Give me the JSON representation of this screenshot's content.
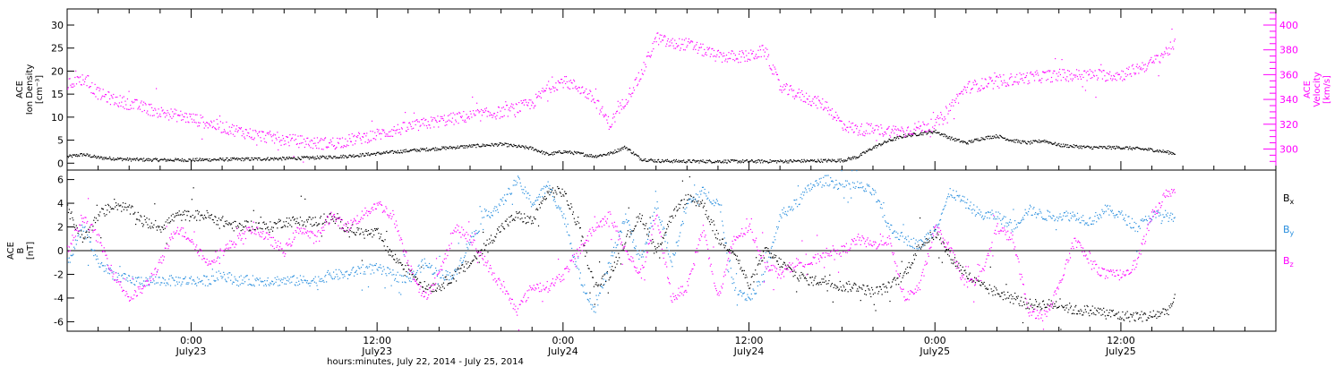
{
  "chart_data": [
    {
      "panel": "top",
      "type": "scatter",
      "xlabel": "hours:minutes, July 22, 2014 - July 25, 2014",
      "x_unit": "hours since 2014-07-22 00:00",
      "xlim": [
        16,
        94
      ],
      "x_ticks": [
        {
          "x": 24,
          "line1": "0:00",
          "line2": "July23"
        },
        {
          "x": 36,
          "line1": "12:00",
          "line2": "July23"
        },
        {
          "x": 48,
          "line1": "0:00",
          "line2": "July24"
        },
        {
          "x": 60,
          "line1": "12:00",
          "line2": "July24"
        },
        {
          "x": 72,
          "line1": "0:00",
          "line2": "July25"
        },
        {
          "x": 84,
          "line1": "12:00",
          "line2": "July25"
        }
      ],
      "left_axis": {
        "title_lines": [
          "ACE",
          "Ion Density",
          "[cm⁻³]"
        ],
        "ylim": [
          -1.5,
          33.5
        ],
        "ticks": [
          0,
          5,
          10,
          15,
          20,
          25,
          30
        ],
        "color": "#000000"
      },
      "right_axis": {
        "title_lines": [
          "ACE",
          "Velocity",
          "[km/s]"
        ],
        "ylim": [
          283,
          413
        ],
        "ticks": [
          300,
          320,
          340,
          360,
          380,
          400
        ],
        "color": "#ff00ff"
      },
      "series": [
        {
          "color": "#000000",
          "axis": "left",
          "x": [
            16,
            17,
            18,
            20,
            22,
            24,
            26,
            28,
            30,
            32,
            34,
            36,
            38,
            40,
            42,
            44,
            46,
            47,
            48,
            49,
            50,
            51,
            52,
            53,
            54,
            56,
            58,
            60,
            62,
            64,
            66,
            67,
            68,
            69,
            70,
            71,
            72,
            73,
            74,
            75,
            76,
            77,
            78,
            79,
            80,
            82,
            84,
            86,
            87.5
          ],
          "y": [
            1.5,
            2.0,
            1.3,
            0.9,
            0.8,
            0.8,
            0.9,
            1.0,
            1.1,
            1.3,
            1.6,
            2.2,
            2.8,
            3.3,
            3.8,
            4.2,
            3.3,
            2.0,
            2.6,
            2.2,
            1.6,
            2.2,
            3.6,
            1.0,
            0.6,
            0.5,
            0.5,
            0.5,
            0.5,
            0.6,
            0.7,
            1.5,
            3.5,
            5.0,
            6.0,
            6.5,
            7.0,
            5.5,
            4.5,
            5.5,
            6.0,
            5.0,
            4.5,
            5.0,
            4.0,
            3.5,
            3.5,
            3.0,
            2.2
          ]
        },
        {
          "color": "#ff00ff",
          "axis": "right",
          "x": [
            16,
            17,
            18,
            19,
            20,
            22,
            24,
            26,
            28,
            30,
            32,
            33,
            34,
            36,
            38,
            40,
            42,
            44,
            46,
            47,
            48,
            49,
            50,
            51,
            52,
            53,
            54,
            55,
            56,
            57,
            58,
            59,
            60,
            61,
            62,
            63,
            64,
            65,
            66,
            67,
            68,
            69,
            70,
            71,
            72,
            73,
            74,
            76,
            78,
            80,
            82,
            84,
            86,
            87.5
          ],
          "y": [
            352,
            357,
            345,
            340,
            337,
            330,
            325,
            318,
            312,
            308,
            305,
            305,
            307,
            312,
            318,
            323,
            327,
            330,
            337,
            350,
            355,
            350,
            340,
            320,
            340,
            360,
            390,
            385,
            385,
            380,
            375,
            375,
            375,
            380,
            350,
            345,
            340,
            335,
            320,
            316,
            316,
            315,
            315,
            318,
            320,
            335,
            350,
            355,
            358,
            360,
            360,
            360,
            370,
            385
          ]
        }
      ]
    },
    {
      "panel": "bottom",
      "type": "scatter",
      "xlim": [
        16,
        94
      ],
      "left_axis": {
        "title_lines": [
          "ACE",
          "B",
          "[nT]"
        ],
        "ylim": [
          -6.8,
          6.8
        ],
        "ticks": [
          -6,
          -4,
          -2,
          0,
          2,
          4,
          6
        ],
        "color": "#000000"
      },
      "zero_line": true,
      "legend": [
        {
          "name": "Bₓ",
          "color": "#000000"
        },
        {
          "name": "Bᵧ",
          "color": "#2a8fde"
        },
        {
          "name": "B_z",
          "color": "#ff00ff"
        }
      ],
      "legend_placement": "right",
      "series": [
        {
          "name": "Bx",
          "color": "#000000",
          "x": [
            16,
            17,
            18,
            19,
            20,
            21,
            22,
            23,
            24,
            25,
            26,
            27,
            28,
            29,
            30,
            31,
            32,
            33,
            34,
            35,
            36,
            37,
            38,
            39,
            40,
            41,
            42,
            43,
            44,
            45,
            46,
            47,
            48,
            49,
            50,
            51,
            52,
            53,
            54,
            55,
            56,
            57,
            58,
            59,
            60,
            61,
            62,
            63,
            64,
            65,
            66,
            67,
            68,
            69,
            70,
            71,
            72,
            73,
            74,
            75,
            76,
            77,
            78,
            79,
            80,
            81,
            82,
            83,
            84,
            85,
            86,
            87,
            87.5
          ],
          "y": [
            3.5,
            1.0,
            3.0,
            4.0,
            3.5,
            2.5,
            2.0,
            3.0,
            3.0,
            3.0,
            2.5,
            2.0,
            2.2,
            2.0,
            2.5,
            2.5,
            2.5,
            2.8,
            2.0,
            1.5,
            1.5,
            -0.5,
            -1.5,
            -3.0,
            -3.0,
            -2.0,
            -1.0,
            0.5,
            2.0,
            3.0,
            2.5,
            5.0,
            5.0,
            2.0,
            -3.0,
            -2.0,
            1.0,
            3.0,
            0.0,
            3.0,
            4.5,
            4.0,
            1.0,
            0.0,
            -3.0,
            0.0,
            -1.0,
            -2.0,
            -2.5,
            -2.5,
            -3.0,
            -3.0,
            -3.5,
            -3.0,
            -2.0,
            0.5,
            1.5,
            -0.5,
            -2.0,
            -3.0,
            -3.5,
            -4.0,
            -4.5,
            -4.5,
            -4.5,
            -5.0,
            -5.0,
            -5.2,
            -5.5,
            -5.5,
            -5.5,
            -5.0,
            -4.0
          ]
        },
        {
          "name": "By",
          "color": "#2a8fde",
          "x": [
            16,
            17,
            18,
            19,
            20,
            21,
            22,
            23,
            24,
            25,
            26,
            27,
            28,
            29,
            30,
            31,
            32,
            33,
            34,
            35,
            36,
            37,
            38,
            39,
            40,
            41,
            42,
            43,
            44,
            45,
            46,
            47,
            48,
            49,
            50,
            51,
            52,
            53,
            54,
            55,
            56,
            57,
            58,
            59,
            60,
            61,
            62,
            63,
            64,
            65,
            66,
            67,
            68,
            69,
            70,
            71,
            72,
            73,
            74,
            75,
            76,
            77,
            78,
            79,
            80,
            81,
            82,
            83,
            84,
            85,
            86,
            87,
            87.5
          ],
          "y": [
            -1.0,
            2.0,
            -1.0,
            -2.0,
            -2.5,
            -2.5,
            -2.5,
            -2.5,
            -2.5,
            -2.5,
            -2.0,
            -2.5,
            -2.5,
            -2.5,
            -2.5,
            -2.5,
            -2.5,
            -2.0,
            -2.0,
            -1.5,
            -1.5,
            -2.0,
            -2.5,
            -1.0,
            -2.0,
            -2.0,
            1.0,
            3.0,
            4.0,
            6.0,
            4.0,
            5.5,
            3.0,
            -2.0,
            -5.0,
            -1.0,
            3.0,
            -1.0,
            4.0,
            -1.0,
            4.0,
            5.0,
            4.0,
            -3.0,
            -4.0,
            -2.0,
            3.0,
            4.0,
            5.5,
            6.0,
            5.5,
            5.5,
            5.0,
            2.0,
            1.0,
            0.5,
            2.0,
            5.0,
            4.0,
            3.0,
            3.0,
            2.0,
            3.5,
            3.0,
            3.0,
            3.0,
            2.5,
            3.5,
            3.0,
            2.0,
            3.0,
            3.0,
            2.5
          ]
        },
        {
          "name": "Bz",
          "color": "#ff00ff",
          "x": [
            16,
            17,
            18,
            19,
            20,
            21,
            22,
            23,
            24,
            25,
            26,
            27,
            28,
            29,
            30,
            31,
            32,
            33,
            34,
            35,
            36,
            37,
            38,
            39,
            40,
            41,
            42,
            43,
            44,
            45,
            46,
            47,
            48,
            49,
            50,
            51,
            52,
            53,
            54,
            55,
            56,
            57,
            58,
            59,
            60,
            61,
            62,
            63,
            64,
            65,
            66,
            67,
            68,
            69,
            70,
            71,
            72,
            73,
            74,
            75,
            76,
            77,
            78,
            79,
            80,
            81,
            82,
            83,
            84,
            85,
            86,
            87,
            87.5
          ],
          "y": [
            0.0,
            3.0,
            1.0,
            -2.0,
            -4.0,
            -3.0,
            -1.0,
            2.0,
            1.0,
            -1.0,
            0.0,
            1.0,
            2.0,
            1.0,
            0.0,
            2.0,
            1.0,
            3.0,
            2.0,
            3.0,
            4.0,
            3.0,
            -1.0,
            -4.0,
            -2.0,
            2.0,
            1.0,
            -1.0,
            -3.0,
            -5.0,
            -3.0,
            -3.0,
            -2.0,
            0.0,
            2.0,
            3.0,
            0.0,
            -2.0,
            3.0,
            -4.0,
            -3.0,
            2.0,
            -4.0,
            1.0,
            2.0,
            -1.0,
            -2.0,
            -1.0,
            -1.0,
            0.0,
            0.0,
            1.0,
            0.5,
            1.0,
            -4.0,
            -3.0,
            2.0,
            0.0,
            -3.0,
            -2.0,
            2.0,
            1.0,
            -5.0,
            -5.5,
            -3.0,
            1.0,
            -1.0,
            -2.0,
            -2.0,
            -1.0,
            3.0,
            5.0,
            5.0
          ]
        }
      ]
    }
  ]
}
